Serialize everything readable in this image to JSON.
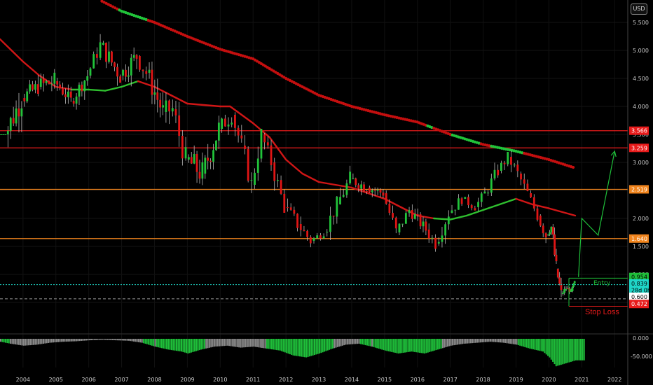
{
  "currency_button": "USD",
  "chart_data": {
    "type": "candlestick",
    "x_range": [
      2003.3,
      2022.4
    ],
    "y_range": [
      0.0,
      5.9
    ],
    "price_ticks": [
      "5.500",
      "5.000",
      "4.500",
      "4.000",
      "3.500",
      "3.000",
      "2.500",
      "2.000",
      "1.500",
      "1.000",
      "0.500"
    ],
    "year_ticks": [
      "2004",
      "2005",
      "2006",
      "2007",
      "2008",
      "2009",
      "2010",
      "2011",
      "2012",
      "2013",
      "2014",
      "2015",
      "2016",
      "2017",
      "2018",
      "2019",
      "2020",
      "2021",
      "2022"
    ],
    "horizontal_levels": [
      {
        "value": 3.566,
        "label": "3.566",
        "color": "#e81b1b"
      },
      {
        "value": 3.259,
        "label": "3.259",
        "color": "#e81b1b"
      },
      {
        "value": 2.519,
        "label": "2.519",
        "color": "#f0841d"
      },
      {
        "value": 1.64,
        "label": "1.640",
        "color": "#f0841d"
      }
    ],
    "price_labels": [
      {
        "value": 0.954,
        "label": "0.954",
        "bg": "#1fbf3a",
        "fg": "#000000"
      },
      {
        "value": 0.839,
        "label": "0.839",
        "bg": "#1fd6c8",
        "fg": "#000000"
      },
      {
        "value": 0.72,
        "label": "28d 0h",
        "bg": "#1fd6c8",
        "fg": "#000000"
      },
      {
        "value": 0.6,
        "label": "0.600",
        "bg": "#ffffff",
        "fg": "#000000"
      },
      {
        "value": 0.472,
        "label": "0.472",
        "bg": "#e81b1b",
        "fg": "#ffffff"
      }
    ],
    "annotations": [
      {
        "text": "Entry",
        "color": "#1fbf3a"
      },
      {
        "text": "Stop Loss",
        "color": "#e81b1b"
      }
    ],
    "forecast_path": [
      [
        2020.9,
        0.954
      ],
      [
        2021.0,
        2.0
      ],
      [
        2021.5,
        1.7
      ],
      [
        2022.0,
        3.2
      ]
    ],
    "long_ma": [
      [
        2006.4,
        5.88
      ],
      [
        2007.0,
        5.7
      ],
      [
        2008.0,
        5.5
      ],
      [
        2009.0,
        5.25
      ],
      [
        2010.0,
        5.02
      ],
      [
        2011.0,
        4.85
      ],
      [
        2012.0,
        4.5
      ],
      [
        2013.0,
        4.2
      ],
      [
        2014.0,
        4.0
      ],
      [
        2015.0,
        3.85
      ],
      [
        2016.0,
        3.72
      ],
      [
        2017.0,
        3.5
      ],
      [
        2018.0,
        3.32
      ],
      [
        2019.0,
        3.2
      ],
      [
        2020.0,
        3.05
      ],
      [
        2020.8,
        2.9
      ]
    ],
    "mid_ma": [
      [
        2003.3,
        5.2
      ],
      [
        2004.0,
        4.8
      ],
      [
        2004.5,
        4.55
      ],
      [
        2005.0,
        4.35
      ],
      [
        2005.5,
        4.3
      ],
      [
        2006.0,
        4.3
      ],
      [
        2006.5,
        4.28
      ],
      [
        2007.0,
        4.35
      ],
      [
        2007.5,
        4.45
      ],
      [
        2008.0,
        4.35
      ],
      [
        2008.5,
        4.2
      ],
      [
        2009.0,
        4.05
      ],
      [
        2010.0,
        4.0
      ],
      [
        2010.3,
        4.0
      ],
      [
        2011.0,
        3.7
      ],
      [
        2011.5,
        3.45
      ],
      [
        2012.0,
        3.05
      ],
      [
        2012.5,
        2.8
      ],
      [
        2013.0,
        2.65
      ],
      [
        2014.0,
        2.55
      ],
      [
        2015.0,
        2.35
      ],
      [
        2015.5,
        2.2
      ],
      [
        2016.0,
        2.05
      ],
      [
        2016.5,
        2.0
      ],
      [
        2017.0,
        1.98
      ],
      [
        2017.5,
        2.05
      ],
      [
        2018.0,
        2.15
      ],
      [
        2018.5,
        2.25
      ],
      [
        2019.0,
        2.35
      ],
      [
        2019.5,
        2.25
      ],
      [
        2020.0,
        2.18
      ],
      [
        2020.8,
        2.05
      ]
    ],
    "ohlc": [
      [
        2003.3,
        3.5,
        3.5,
        3.5,
        3.5
      ],
      [
        2003.5,
        3.5,
        4.5,
        3.1,
        4.15
      ],
      [
        2004.0,
        4.15,
        4.75,
        3.9,
        4.35
      ],
      [
        2004.5,
        4.35,
        4.95,
        4.0,
        4.45
      ],
      [
        2005.0,
        4.45,
        4.6,
        3.95,
        4.1
      ],
      [
        2005.5,
        4.1,
        4.65,
        3.9,
        4.55
      ],
      [
        2006.0,
        4.55,
        5.3,
        4.5,
        5.1
      ],
      [
        2006.4,
        5.1,
        5.3,
        4.3,
        4.55
      ],
      [
        2007.0,
        4.55,
        5.3,
        4.3,
        4.9
      ],
      [
        2007.5,
        4.9,
        5.3,
        4.3,
        4.6
      ],
      [
        2007.8,
        4.6,
        4.8,
        3.6,
        3.9
      ],
      [
        2008.3,
        3.9,
        4.3,
        3.2,
        3.95
      ],
      [
        2008.6,
        3.95,
        4.1,
        2.8,
        3.05
      ],
      [
        2009.0,
        3.05,
        3.5,
        2.1,
        2.8
      ],
      [
        2009.5,
        2.8,
        3.9,
        2.6,
        3.6
      ],
      [
        2010.0,
        3.6,
        4.05,
        3.2,
        3.85
      ],
      [
        2010.4,
        3.85,
        3.95,
        3.0,
        3.3
      ],
      [
        2010.7,
        3.3,
        3.5,
        2.4,
        2.6
      ],
      [
        2011.0,
        2.6,
        3.6,
        2.5,
        3.5
      ],
      [
        2011.3,
        3.5,
        3.7,
        2.85,
        3.0
      ],
      [
        2011.6,
        3.0,
        3.1,
        2.1,
        2.2
      ],
      [
        2012.0,
        2.2,
        2.5,
        1.7,
        1.9
      ],
      [
        2012.4,
        1.9,
        2.1,
        1.45,
        1.6
      ],
      [
        2012.8,
        1.6,
        1.9,
        1.5,
        1.75
      ],
      [
        2013.2,
        1.75,
        2.4,
        1.6,
        2.25
      ],
      [
        2013.6,
        2.25,
        3.0,
        2.15,
        2.7
      ],
      [
        2014.0,
        2.7,
        3.0,
        2.4,
        2.55
      ],
      [
        2014.5,
        2.55,
        2.7,
        2.2,
        2.45
      ],
      [
        2015.0,
        2.45,
        2.5,
        1.6,
        1.75
      ],
      [
        2015.4,
        1.75,
        2.3,
        1.7,
        2.15
      ],
      [
        2015.8,
        2.15,
        2.3,
        1.7,
        1.8
      ],
      [
        2016.3,
        1.8,
        2.0,
        1.35,
        1.55
      ],
      [
        2016.6,
        1.55,
        2.2,
        1.45,
        2.1
      ],
      [
        2017.0,
        2.1,
        2.5,
        1.95,
        2.35
      ],
      [
        2017.4,
        2.35,
        2.5,
        2.1,
        2.2
      ],
      [
        2017.8,
        2.2,
        2.6,
        2.1,
        2.45
      ],
      [
        2018.1,
        2.45,
        3.1,
        2.4,
        2.85
      ],
      [
        2018.5,
        2.85,
        3.25,
        2.7,
        3.1
      ],
      [
        2018.8,
        3.1,
        3.25,
        2.6,
        2.8
      ],
      [
        2019.1,
        2.8,
        2.9,
        2.3,
        2.45
      ],
      [
        2019.4,
        2.45,
        2.5,
        1.9,
        2.05
      ],
      [
        2019.7,
        2.05,
        2.2,
        1.5,
        1.7
      ],
      [
        2019.95,
        1.7,
        1.95,
        1.6,
        1.85
      ],
      [
        2020.1,
        1.85,
        1.9,
        0.95,
        1.1
      ],
      [
        2020.25,
        1.1,
        1.2,
        0.5,
        0.65
      ],
      [
        2020.4,
        0.65,
        0.85,
        0.6,
        0.75
      ],
      [
        2020.55,
        0.75,
        0.8,
        0.6,
        0.7
      ],
      [
        2020.7,
        0.7,
        0.95,
        0.68,
        0.85
      ],
      [
        2020.8,
        0.85,
        0.95,
        0.8,
        0.839
      ]
    ],
    "histogram_ticks": [
      "0.000",
      "-50.000"
    ],
    "histogram": [
      [
        2003.3,
        -6
      ],
      [
        2003.6,
        -10
      ],
      [
        2004.0,
        -14
      ],
      [
        2004.4,
        -12
      ],
      [
        2004.8,
        -8
      ],
      [
        2005.2,
        -6
      ],
      [
        2005.6,
        -5
      ],
      [
        2006.0,
        -3
      ],
      [
        2006.4,
        -2
      ],
      [
        2006.8,
        -3
      ],
      [
        2007.2,
        -4
      ],
      [
        2007.6,
        -8
      ],
      [
        2008.0,
        -16
      ],
      [
        2008.4,
        -22
      ],
      [
        2008.8,
        -26
      ],
      [
        2009.0,
        -30
      ],
      [
        2009.4,
        -22
      ],
      [
        2009.8,
        -16
      ],
      [
        2010.2,
        -14
      ],
      [
        2010.6,
        -18
      ],
      [
        2011.0,
        -16
      ],
      [
        2011.4,
        -20
      ],
      [
        2011.8,
        -24
      ],
      [
        2012.2,
        -34
      ],
      [
        2012.6,
        -38
      ],
      [
        2013.0,
        -30
      ],
      [
        2013.4,
        -20
      ],
      [
        2013.8,
        -12
      ],
      [
        2014.2,
        -10
      ],
      [
        2014.6,
        -16
      ],
      [
        2015.0,
        -24
      ],
      [
        2015.4,
        -30
      ],
      [
        2015.8,
        -26
      ],
      [
        2016.2,
        -30
      ],
      [
        2016.6,
        -22
      ],
      [
        2017.0,
        -14
      ],
      [
        2017.4,
        -10
      ],
      [
        2017.8,
        -8
      ],
      [
        2018.2,
        -6
      ],
      [
        2018.6,
        -8
      ],
      [
        2019.0,
        -12
      ],
      [
        2019.4,
        -20
      ],
      [
        2019.8,
        -26
      ],
      [
        2020.0,
        -38
      ],
      [
        2020.2,
        -56
      ],
      [
        2020.4,
        -52
      ],
      [
        2020.6,
        -48
      ],
      [
        2020.8,
        -44
      ]
    ]
  }
}
